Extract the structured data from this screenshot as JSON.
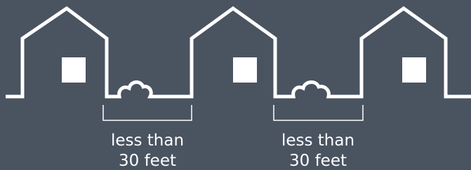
{
  "labels": [
    [
      "less than",
      "30 feet"
    ],
    [
      "less than",
      "30 feet"
    ]
  ]
}
